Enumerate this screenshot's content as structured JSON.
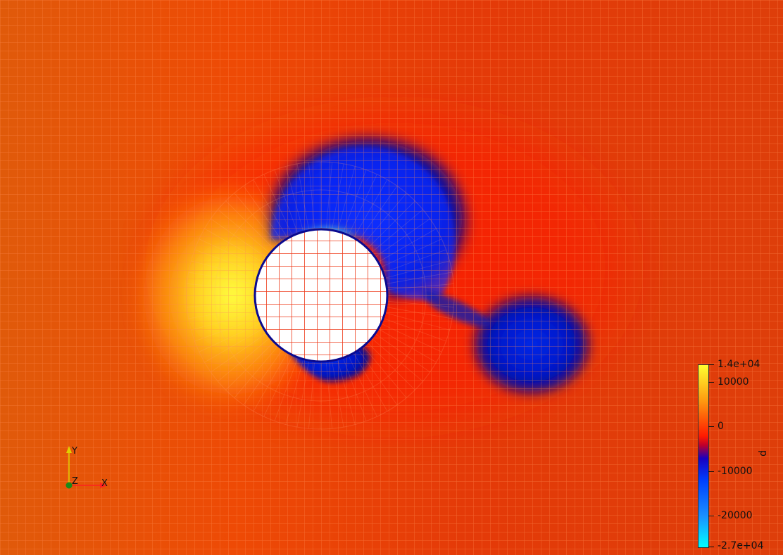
{
  "field": {
    "colors": {
      "background": "#e0440c",
      "grid_line": "#ff7a3a",
      "high": "#ffff30",
      "zero": "#ff1a00",
      "low": "#0014d8",
      "min": "#00ffff"
    }
  },
  "colorbar": {
    "title": "p",
    "max_label": "1.4e+04",
    "min_label": "-2.7e+04",
    "max_value": 14000,
    "min_value": -27000,
    "tick_labels": [
      "10000",
      "0",
      "-10000",
      "-20000"
    ],
    "tick_values": [
      10000,
      0,
      -10000,
      -20000
    ],
    "gradient": [
      {
        "value": 14000,
        "color": "#ffff30"
      },
      {
        "value": 6000,
        "color": "#ff9a10"
      },
      {
        "value": -2000,
        "color": "#ff1a00"
      },
      {
        "value": -4000,
        "color": "#c0002a"
      },
      {
        "value": -7000,
        "color": "#1a00c0"
      },
      {
        "value": -12000,
        "color": "#0040ff"
      },
      {
        "value": -20000,
        "color": "#1a90ff"
      },
      {
        "value": -27000,
        "color": "#00ffff"
      }
    ]
  },
  "axes": {
    "x_label": "X",
    "y_label": "Y",
    "z_label": "Z",
    "x_color": "#ff2020",
    "y_color": "#e0e000",
    "z_color": "#20a020"
  }
}
